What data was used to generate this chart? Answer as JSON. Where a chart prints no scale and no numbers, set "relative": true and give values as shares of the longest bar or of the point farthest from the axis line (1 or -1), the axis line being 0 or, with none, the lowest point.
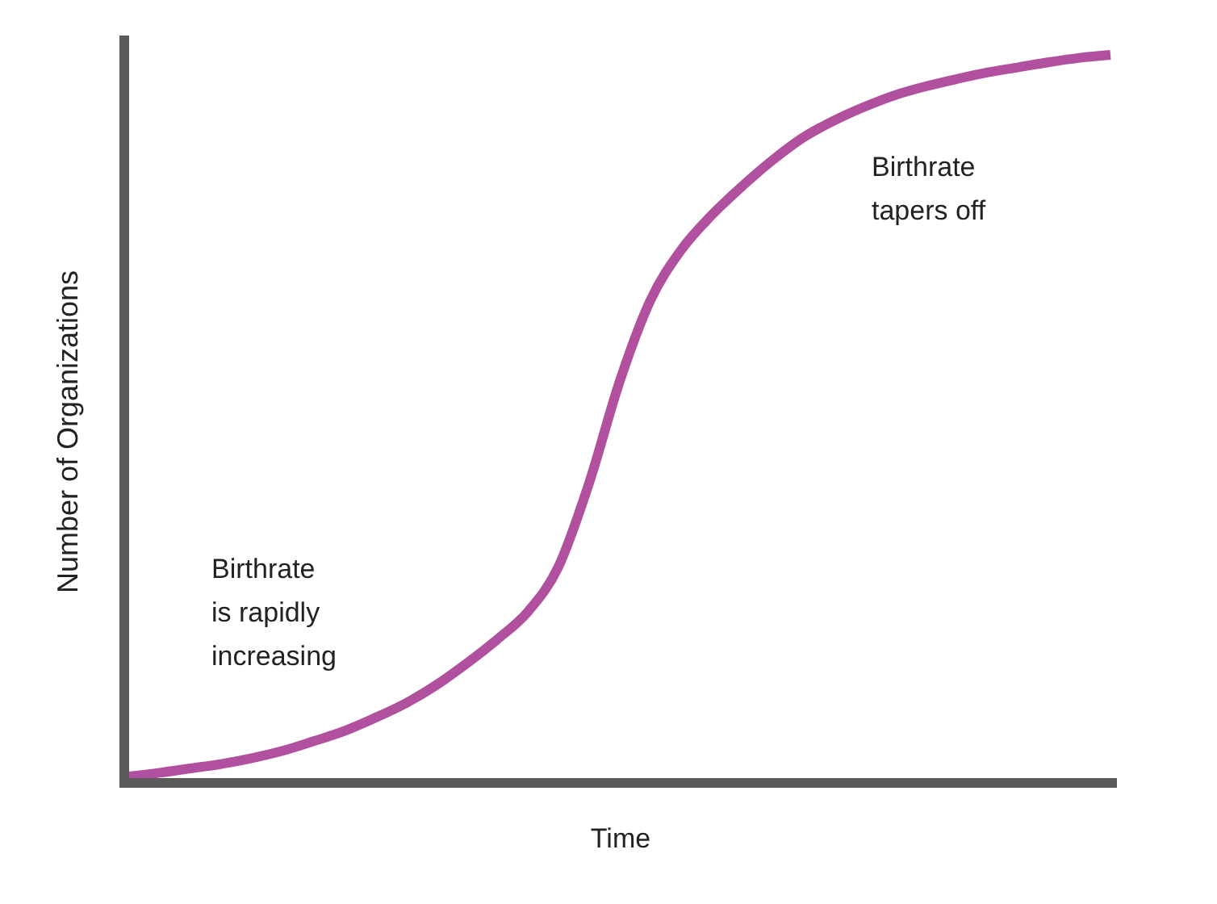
{
  "chart_data": {
    "type": "line",
    "relative": true,
    "xlabel": "Time",
    "ylabel": "Number of Organizations",
    "annotations": [
      "Birthrate\nis rapidly\nincreasing",
      "Birthrate\ntapers off"
    ],
    "categories": [
      null,
      null,
      null,
      null,
      null,
      null,
      null,
      null,
      null,
      null,
      null,
      null,
      null,
      null,
      null,
      null,
      null,
      null,
      null,
      null,
      null,
      null,
      null,
      null,
      null,
      null,
      null,
      null,
      null,
      null,
      null,
      null,
      null
    ],
    "color": "#b0509e",
    "values": [
      0.009,
      0.014,
      0.02,
      0.026,
      0.034,
      0.044,
      0.057,
      0.071,
      0.089,
      0.109,
      0.134,
      0.164,
      0.197,
      0.235,
      0.297,
      0.412,
      0.552,
      0.663,
      0.732,
      0.78,
      0.82,
      0.856,
      0.887,
      0.91,
      0.929,
      0.945,
      0.957,
      0.967,
      0.976,
      0.983,
      0.99,
      0.996,
      1
    ]
  }
}
